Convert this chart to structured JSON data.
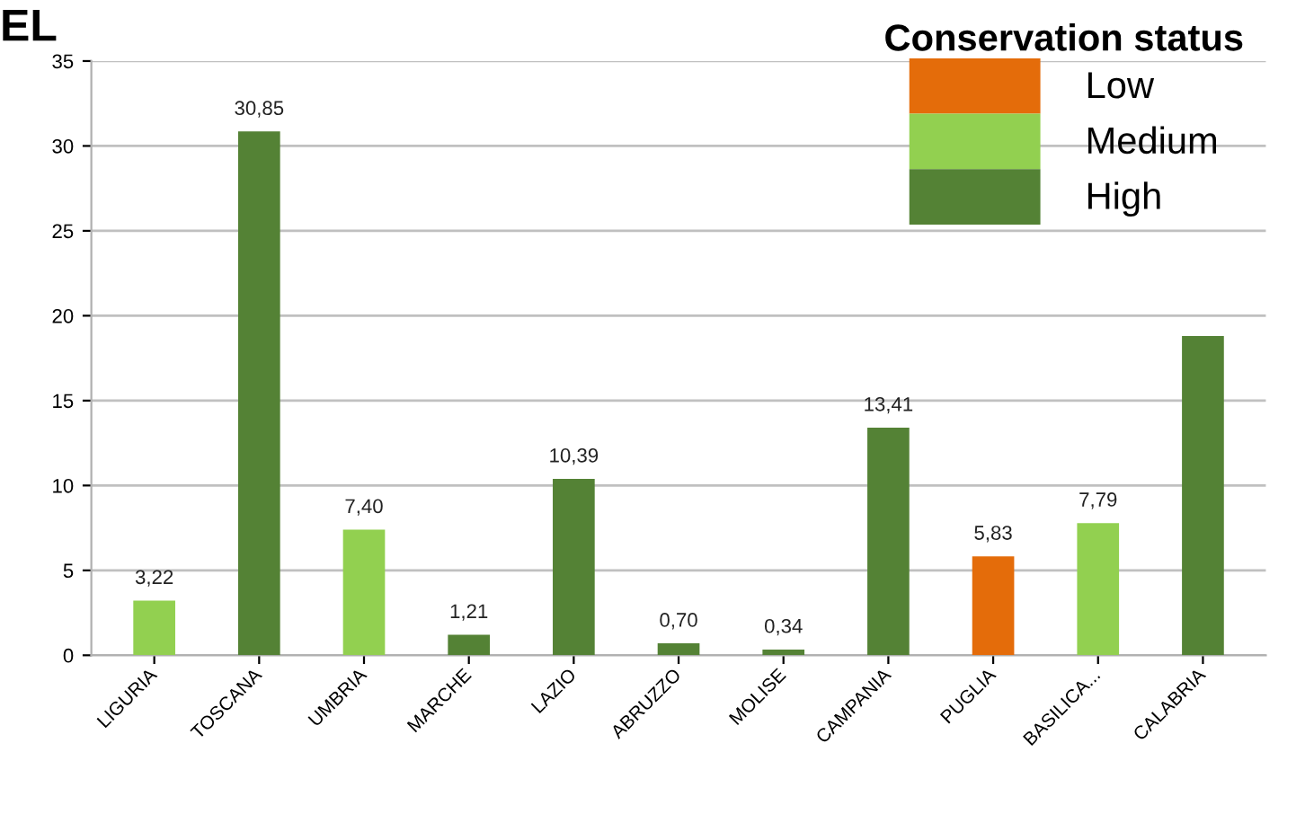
{
  "chart_data": {
    "type": "bar",
    "categories": [
      "LIGURIA",
      "TOSCANA",
      "UMBRIA",
      "MARCHE",
      "LAZIO",
      "ABRUZZO",
      "MOLISE",
      "CAMPANIA",
      "PUGLIA",
      "BASILICA...",
      "CALABRIA"
    ],
    "series": [
      {
        "name": "Low",
        "color": "#e46c0a",
        "values": [
          null,
          null,
          null,
          null,
          null,
          null,
          null,
          null,
          5.83,
          null,
          null
        ],
        "value_labels": [
          null,
          null,
          null,
          null,
          null,
          null,
          null,
          null,
          "5,83",
          null,
          null
        ]
      },
      {
        "name": "Medium",
        "color": "#92d050",
        "values": [
          3.22,
          null,
          7.4,
          null,
          null,
          null,
          null,
          null,
          null,
          7.79,
          null
        ],
        "value_labels": [
          "3,22",
          null,
          "7,40",
          null,
          null,
          null,
          null,
          null,
          null,
          "7,79",
          null
        ]
      },
      {
        "name": "High",
        "color": "#548235",
        "values": [
          null,
          30.85,
          null,
          1.21,
          10.39,
          0.7,
          0.34,
          13.41,
          null,
          null,
          18.8
        ],
        "value_labels": [
          null,
          "30,85",
          null,
          "1,21",
          "10,39",
          "0,70",
          "0,34",
          "13,41",
          null,
          null,
          null
        ]
      }
    ],
    "legend_title": "Conservation status",
    "legend": "top right",
    "ylim": [
      0,
      35
    ],
    "yticks": [
      0,
      5,
      10,
      15,
      20,
      25,
      30,
      35
    ],
    "grid": "y",
    "annotations": [
      "EL"
    ]
  }
}
